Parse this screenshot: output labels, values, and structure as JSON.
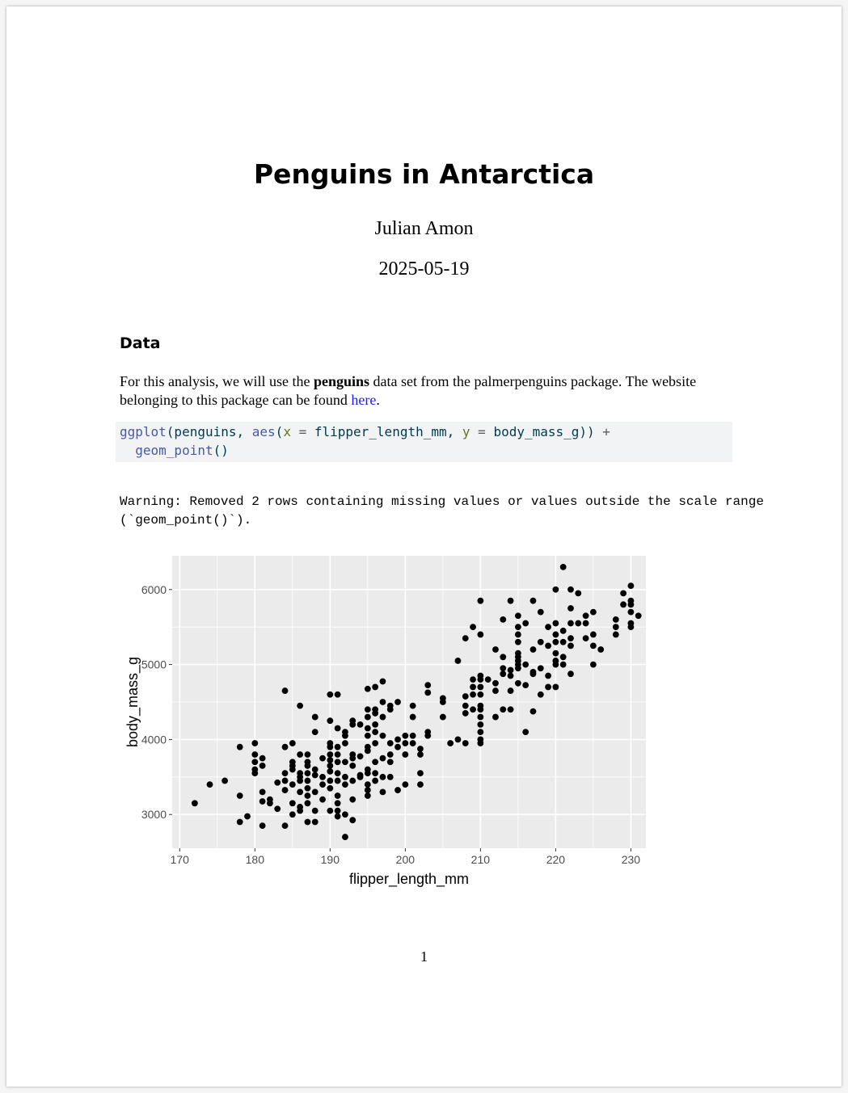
{
  "document": {
    "title": "Penguins in Antarctica",
    "author": "Julian Amon",
    "date": "2025-05-19",
    "section_heading": "Data",
    "paragraph": {
      "before": "For this analysis, we will use the ",
      "bold": "penguins",
      "middle": " data set from the palmerpenguins package.  The website belonging to this package can be found ",
      "link": "here",
      "after": "."
    },
    "code": {
      "line1": {
        "fn1": "ggplot",
        "t1": "(penguins, ",
        "fn2": "aes",
        "t2": "(",
        "a1": "x",
        "eq1": " = ",
        "t3": "flipper_length_mm, ",
        "a2": "y",
        "eq2": " = ",
        "t4": "body_mass_g)) ",
        "plus": "+"
      },
      "line2": {
        "indent": "  ",
        "fn": "geom_point",
        "t": "()"
      }
    },
    "warning_line1": "Warning: Removed 2 rows containing missing values or values outside the scale range",
    "warning_line2": "(`geom_point()`).",
    "page_number": "1"
  },
  "chart_data": {
    "type": "scatter",
    "xlabel": "flipper_length_mm",
    "ylabel": "body_mass_g",
    "xlim": [
      169,
      232
    ],
    "ylim": [
      2550,
      6450
    ],
    "xticks": [
      170,
      180,
      190,
      200,
      210,
      220,
      230
    ],
    "yticks": [
      3000,
      4000,
      5000,
      6000
    ],
    "grid": true,
    "colors": {
      "panel": "#ebebeb",
      "grid": "#ffffff",
      "point": "#000000"
    },
    "points": [
      [
        172,
        3150
      ],
      [
        174,
        3400
      ],
      [
        176,
        3450
      ],
      [
        178,
        3900
      ],
      [
        178,
        3250
      ],
      [
        178,
        2900
      ],
      [
        179,
        2975
      ],
      [
        180,
        3950
      ],
      [
        180,
        3800
      ],
      [
        180,
        3700
      ],
      [
        180,
        3600
      ],
      [
        180,
        3550
      ],
      [
        181,
        3750
      ],
      [
        181,
        3650
      ],
      [
        181,
        3300
      ],
      [
        181,
        3175
      ],
      [
        181,
        2850
      ],
      [
        182,
        3200
      ],
      [
        182,
        3150
      ],
      [
        183,
        3425
      ],
      [
        183,
        3075
      ],
      [
        184,
        3550
      ],
      [
        184,
        3900
      ],
      [
        184,
        4650
      ],
      [
        184,
        3450
      ],
      [
        184,
        3325
      ],
      [
        184,
        2850
      ],
      [
        185,
        3950
      ],
      [
        185,
        3700
      ],
      [
        185,
        3650
      ],
      [
        185,
        3600
      ],
      [
        185,
        3400
      ],
      [
        185,
        3150
      ],
      [
        185,
        3000
      ],
      [
        186,
        4450
      ],
      [
        186,
        3800
      ],
      [
        186,
        3550
      ],
      [
        186,
        3500
      ],
      [
        186,
        3450
      ],
      [
        186,
        3300
      ],
      [
        186,
        3100
      ],
      [
        186,
        3050
      ],
      [
        187,
        3800
      ],
      [
        187,
        3700
      ],
      [
        187,
        3650
      ],
      [
        187,
        3550
      ],
      [
        187,
        3450
      ],
      [
        187,
        3350
      ],
      [
        187,
        3250
      ],
      [
        187,
        3150
      ],
      [
        187,
        2900
      ],
      [
        188,
        4300
      ],
      [
        188,
        4100
      ],
      [
        188,
        3600
      ],
      [
        188,
        3525
      ],
      [
        188,
        3300
      ],
      [
        188,
        3050
      ],
      [
        188,
        2900
      ],
      [
        189,
        3750
      ],
      [
        189,
        3500
      ],
      [
        189,
        3400
      ],
      [
        189,
        3200
      ],
      [
        190,
        4600
      ],
      [
        190,
        4250
      ],
      [
        190,
        3950
      ],
      [
        190,
        3900
      ],
      [
        190,
        3800
      ],
      [
        190,
        3725
      ],
      [
        190,
        3650
      ],
      [
        190,
        3575
      ],
      [
        190,
        3450
      ],
      [
        190,
        3350
      ],
      [
        190,
        3050
      ],
      [
        191,
        4600
      ],
      [
        191,
        4150
      ],
      [
        191,
        3900
      ],
      [
        191,
        3800
      ],
      [
        191,
        3700
      ],
      [
        191,
        3550
      ],
      [
        191,
        3450
      ],
      [
        191,
        3250
      ],
      [
        191,
        3150
      ],
      [
        191,
        3050
      ],
      [
        191,
        2975
      ],
      [
        192,
        4100
      ],
      [
        192,
        4050
      ],
      [
        192,
        3950
      ],
      [
        192,
        3700
      ],
      [
        192,
        3500
      ],
      [
        192,
        3400
      ],
      [
        192,
        3000
      ],
      [
        192,
        2700
      ],
      [
        193,
        4250
      ],
      [
        193,
        4200
      ],
      [
        193,
        3800
      ],
      [
        193,
        3750
      ],
      [
        193,
        3650
      ],
      [
        193,
        3450
      ],
      [
        193,
        3200
      ],
      [
        193,
        2925
      ],
      [
        194,
        4200
      ],
      [
        194,
        3775
      ],
      [
        194,
        3525
      ],
      [
        194,
        3500
      ],
      [
        195,
        4675
      ],
      [
        195,
        4400
      ],
      [
        195,
        4300
      ],
      [
        195,
        4150
      ],
      [
        195,
        4050
      ],
      [
        195,
        3900
      ],
      [
        195,
        3850
      ],
      [
        195,
        3600
      ],
      [
        195,
        3550
      ],
      [
        195,
        3400
      ],
      [
        195,
        3325
      ],
      [
        195,
        3250
      ],
      [
        196,
        4700
      ],
      [
        196,
        4400
      ],
      [
        196,
        4350
      ],
      [
        196,
        4200
      ],
      [
        196,
        4100
      ],
      [
        196,
        3950
      ],
      [
        196,
        3700
      ],
      [
        196,
        3550
      ],
      [
        196,
        3450
      ],
      [
        197,
        4775
      ],
      [
        197,
        4500
      ],
      [
        197,
        4300
      ],
      [
        197,
        4050
      ],
      [
        197,
        3750
      ],
      [
        197,
        3500
      ],
      [
        197,
        3300
      ],
      [
        198,
        4450
      ],
      [
        198,
        4400
      ],
      [
        198,
        3950
      ],
      [
        198,
        3800
      ],
      [
        198,
        3700
      ],
      [
        198,
        3500
      ],
      [
        199,
        4500
      ],
      [
        199,
        4000
      ],
      [
        199,
        3900
      ],
      [
        199,
        3325
      ],
      [
        200,
        4050
      ],
      [
        200,
        3950
      ],
      [
        200,
        3800
      ],
      [
        200,
        3400
      ],
      [
        201,
        4450
      ],
      [
        201,
        4300
      ],
      [
        201,
        4050
      ],
      [
        201,
        3950
      ],
      [
        202,
        3875
      ],
      [
        202,
        3800
      ],
      [
        202,
        3550
      ],
      [
        202,
        3400
      ],
      [
        203,
        4725
      ],
      [
        203,
        4625
      ],
      [
        203,
        4100
      ],
      [
        203,
        4050
      ],
      [
        205,
        4550
      ],
      [
        205,
        4500
      ],
      [
        205,
        4300
      ],
      [
        206,
        3950
      ],
      [
        207,
        5050
      ],
      [
        207,
        4000
      ],
      [
        208,
        5350
      ],
      [
        208,
        4575
      ],
      [
        208,
        4450
      ],
      [
        208,
        4350
      ],
      [
        208,
        3950
      ],
      [
        209,
        5500
      ],
      [
        209,
        4800
      ],
      [
        209,
        4700
      ],
      [
        209,
        4600
      ],
      [
        209,
        4400
      ],
      [
        210,
        5850
      ],
      [
        210,
        5400
      ],
      [
        210,
        4850
      ],
      [
        210,
        4800
      ],
      [
        210,
        4700
      ],
      [
        210,
        4600
      ],
      [
        210,
        4450
      ],
      [
        210,
        4400
      ],
      [
        210,
        4300
      ],
      [
        210,
        4200
      ],
      [
        210,
        4100
      ],
      [
        210,
        4000
      ],
      [
        210,
        3950
      ],
      [
        211,
        4800
      ],
      [
        212,
        5200
      ],
      [
        212,
        4750
      ],
      [
        212,
        4650
      ],
      [
        212,
        4300
      ],
      [
        213,
        5600
      ],
      [
        213,
        5100
      ],
      [
        213,
        4950
      ],
      [
        213,
        4875
      ],
      [
        213,
        4400
      ],
      [
        214,
        5850
      ],
      [
        214,
        4925
      ],
      [
        214,
        4850
      ],
      [
        214,
        4650
      ],
      [
        214,
        4400
      ],
      [
        215,
        5650
      ],
      [
        215,
        5500
      ],
      [
        215,
        5400
      ],
      [
        215,
        5300
      ],
      [
        215,
        5150
      ],
      [
        215,
        5100
      ],
      [
        215,
        5050
      ],
      [
        215,
        5000
      ],
      [
        215,
        4950
      ],
      [
        215,
        4750
      ],
      [
        216,
        5550
      ],
      [
        216,
        5000
      ],
      [
        216,
        4725
      ],
      [
        216,
        4100
      ],
      [
        217,
        5850
      ],
      [
        217,
        5200
      ],
      [
        217,
        4900
      ],
      [
        217,
        4875
      ],
      [
        217,
        4375
      ],
      [
        218,
        5700
      ],
      [
        218,
        5300
      ],
      [
        218,
        4950
      ],
      [
        218,
        4600
      ],
      [
        219,
        5500
      ],
      [
        219,
        5250
      ],
      [
        219,
        4850
      ],
      [
        219,
        4700
      ],
      [
        220,
        6000
      ],
      [
        220,
        5550
      ],
      [
        220,
        5400
      ],
      [
        220,
        5300
      ],
      [
        220,
        5150
      ],
      [
        220,
        5050
      ],
      [
        220,
        5000
      ],
      [
        220,
        4700
      ],
      [
        221,
        6300
      ],
      [
        221,
        5450
      ],
      [
        221,
        5300
      ],
      [
        221,
        5100
      ],
      [
        221,
        5000
      ],
      [
        222,
        6000
      ],
      [
        222,
        5750
      ],
      [
        222,
        5550
      ],
      [
        222,
        5350
      ],
      [
        222,
        5250
      ],
      [
        222,
        4875
      ],
      [
        223,
        5950
      ],
      [
        223,
        5550
      ],
      [
        224,
        5650
      ],
      [
        224,
        5550
      ],
      [
        224,
        5350
      ],
      [
        225,
        5700
      ],
      [
        225,
        5400
      ],
      [
        225,
        5250
      ],
      [
        225,
        5000
      ],
      [
        226,
        5200
      ],
      [
        228,
        5600
      ],
      [
        228,
        5500
      ],
      [
        228,
        5400
      ],
      [
        229,
        5950
      ],
      [
        229,
        5800
      ],
      [
        230,
        6050
      ],
      [
        230,
        5850
      ],
      [
        230,
        5800
      ],
      [
        230,
        5700
      ],
      [
        230,
        5550
      ],
      [
        230,
        5500
      ],
      [
        231,
        5650
      ]
    ]
  }
}
